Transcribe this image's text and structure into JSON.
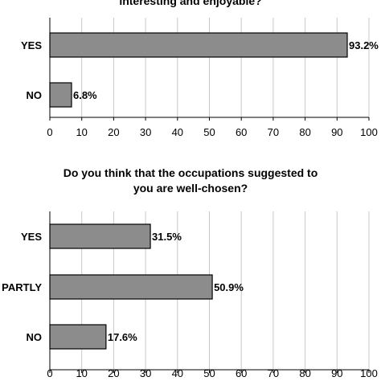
{
  "chart_data": [
    {
      "type": "bar",
      "orientation": "horizontal",
      "title": "interesting and enjoyable?",
      "categories": [
        "YES",
        "NO"
      ],
      "values": [
        93.2,
        6.8
      ],
      "value_labels": [
        "93.2%",
        "6.8%"
      ],
      "xlim": [
        0,
        100
      ],
      "xticks": [
        "0",
        "10",
        "20",
        "30",
        "40",
        "50",
        "60",
        "70",
        "80",
        "90",
        "100"
      ],
      "grid": true,
      "bar_color": "#8c8c8c"
    },
    {
      "type": "bar",
      "orientation": "horizontal",
      "title_lines": [
        "Do you think that the occupations suggested to",
        "you are well-chosen?"
      ],
      "categories": [
        "YES",
        "PARTLY",
        "NO"
      ],
      "values": [
        31.5,
        50.9,
        17.6
      ],
      "value_labels": [
        "31.5%",
        "50.9%",
        "17.6%"
      ],
      "xlim": [
        0,
        100
      ],
      "xticks": [
        "0",
        "10",
        "20",
        "30",
        "40",
        "50",
        "60",
        "70",
        "80",
        "90",
        "100"
      ],
      "grid": true,
      "bar_color": "#8c8c8c"
    }
  ]
}
